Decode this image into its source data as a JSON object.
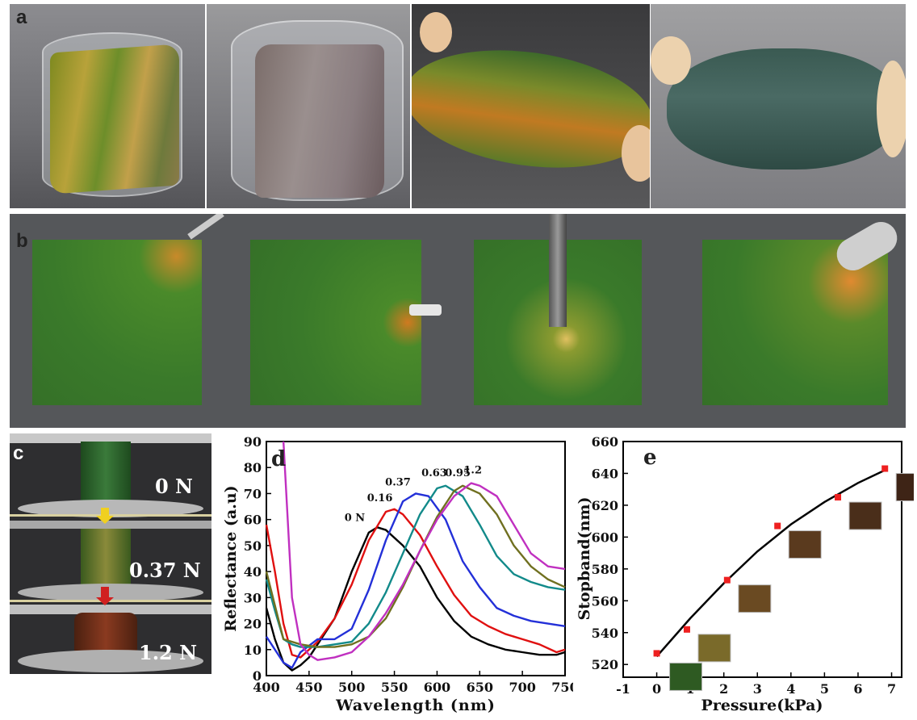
{
  "panels": {
    "a": {
      "label": "a"
    },
    "b": {
      "label": "b"
    },
    "c": {
      "label": "c",
      "forces": [
        "0 N",
        "0.37 N",
        "1.2 N"
      ]
    },
    "d": {
      "label": "d"
    },
    "e": {
      "label": "e"
    }
  },
  "colors": {
    "black": "#000000",
    "red": "#e01010",
    "blue": "#2330d8",
    "teal": "#128a8a",
    "olive": "#707020",
    "magenta": "#c030c0",
    "marker": "#ee2020"
  },
  "chart_data": [
    {
      "id": "d",
      "type": "line",
      "xlabel": "Wavelength (nm)",
      "ylabel": "Reflectance (a.u)",
      "xlim": [
        400,
        750
      ],
      "ylim": [
        0,
        90
      ],
      "xticks": [
        400,
        450,
        500,
        550,
        600,
        650,
        700,
        750
      ],
      "yticks": [
        0,
        10,
        20,
        30,
        40,
        50,
        60,
        70,
        80,
        90
      ],
      "series": [
        {
          "name": "0 N",
          "color": "#000000",
          "x": [
            400,
            410,
            420,
            430,
            440,
            450,
            460,
            480,
            500,
            520,
            530,
            540,
            560,
            580,
            600,
            620,
            640,
            660,
            680,
            700,
            720,
            740,
            750
          ],
          "y": [
            26,
            14,
            5,
            2,
            4,
            7,
            12,
            22,
            40,
            55,
            57,
            56,
            50,
            42,
            30,
            21,
            15,
            12,
            10,
            9,
            8,
            8,
            9
          ]
        },
        {
          "name": "0.16",
          "color": "#e01010",
          "x": [
            400,
            410,
            420,
            430,
            440,
            450,
            460,
            480,
            500,
            520,
            540,
            550,
            560,
            580,
            600,
            620,
            640,
            660,
            680,
            700,
            720,
            740,
            750
          ],
          "y": [
            58,
            40,
            20,
            8,
            7,
            10,
            13,
            22,
            35,
            52,
            63,
            64,
            62,
            54,
            42,
            31,
            23,
            19,
            16,
            14,
            12,
            9,
            10
          ]
        },
        {
          "name": "0.37",
          "color": "#2330d8",
          "x": [
            400,
            410,
            420,
            430,
            440,
            460,
            480,
            500,
            520,
            540,
            560,
            575,
            590,
            610,
            630,
            650,
            670,
            690,
            710,
            730,
            750
          ],
          "y": [
            15,
            10,
            5,
            3,
            9,
            14,
            14,
            18,
            33,
            52,
            67,
            70,
            69,
            60,
            44,
            34,
            26,
            23,
            21,
            20,
            19
          ]
        },
        {
          "name": "0.63",
          "color": "#128a8a",
          "x": [
            400,
            410,
            420,
            430,
            440,
            460,
            480,
            500,
            520,
            540,
            560,
            580,
            600,
            610,
            630,
            650,
            670,
            690,
            710,
            730,
            750
          ],
          "y": [
            37,
            25,
            14,
            12,
            11,
            11,
            12,
            13,
            20,
            32,
            47,
            62,
            72,
            73,
            69,
            58,
            46,
            39,
            36,
            34,
            33
          ]
        },
        {
          "name": "0.95",
          "color": "#707020",
          "x": [
            400,
            420,
            440,
            460,
            480,
            500,
            520,
            540,
            560,
            580,
            600,
            620,
            630,
            650,
            670,
            690,
            710,
            730,
            750
          ],
          "y": [
            40,
            14,
            12,
            11,
            11,
            12,
            15,
            22,
            34,
            48,
            61,
            71,
            73,
            70,
            62,
            50,
            42,
            37,
            34
          ]
        },
        {
          "name": "1.2",
          "color": "#c030c0",
          "x": [
            420,
            425,
            430,
            440,
            450,
            460,
            480,
            500,
            520,
            540,
            560,
            580,
            600,
            620,
            640,
            650,
            670,
            690,
            710,
            730,
            750
          ],
          "y": [
            90,
            60,
            30,
            12,
            8,
            6,
            7,
            9,
            15,
            24,
            35,
            48,
            60,
            69,
            74,
            73,
            69,
            58,
            47,
            42,
            41
          ]
        }
      ],
      "annotations": [
        "0 N",
        "0.16",
        "0.37",
        "0.63",
        "0.95",
        "1.2"
      ]
    },
    {
      "id": "e",
      "type": "scatter",
      "xlabel": "Pressure(kPa)",
      "ylabel": "Stopband(nm)",
      "xlim": [
        -1,
        7.3
      ],
      "ylim": [
        512,
        660
      ],
      "xticks": [
        -1,
        0,
        1,
        2,
        3,
        4,
        5,
        6,
        7
      ],
      "yticks": [
        520,
        540,
        560,
        580,
        600,
        620,
        640,
        660
      ],
      "points": {
        "x": [
          0,
          0.9,
          2.1,
          3.6,
          5.4,
          6.8
        ],
        "y": [
          527,
          542,
          573,
          607,
          625,
          643
        ]
      },
      "fit": {
        "x": [
          0,
          1,
          2,
          3,
          4,
          5,
          6,
          6.8
        ],
        "y": [
          525,
          549,
          571,
          591,
          608,
          622,
          634,
          642
        ]
      }
    }
  ]
}
